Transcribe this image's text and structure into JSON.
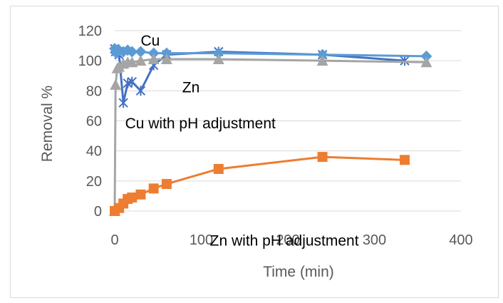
{
  "chart_data": {
    "type": "line",
    "title": "",
    "xlabel": "Time (min)",
    "ylabel": "Removal %",
    "xlim": [
      0,
      400
    ],
    "ylim": [
      0,
      120
    ],
    "x_ticks": [
      "0",
      "100",
      "200",
      "300",
      "400"
    ],
    "y_ticks": [
      "0",
      "20",
      "40",
      "60",
      "80",
      "100",
      "120"
    ],
    "grid": "horizontal",
    "legend": "none",
    "series": [
      {
        "color": "#4472c4",
        "marker": "star",
        "points": [
          [
            0,
            108
          ],
          [
            1,
            106
          ],
          [
            5,
            104
          ],
          [
            10,
            72
          ],
          [
            15,
            85
          ],
          [
            20,
            86
          ],
          [
            30,
            80
          ],
          [
            45,
            97
          ],
          [
            60,
            104
          ],
          [
            120,
            106
          ],
          [
            240,
            104
          ],
          [
            335,
            100
          ]
        ]
      },
      {
        "color": "#5b9bd5",
        "marker": "diamond",
        "points": [
          [
            0,
            108
          ],
          [
            2,
            105
          ],
          [
            5,
            107
          ],
          [
            10,
            106
          ],
          [
            15,
            107
          ],
          [
            20,
            106
          ],
          [
            30,
            106
          ],
          [
            45,
            105
          ],
          [
            60,
            105
          ],
          [
            120,
            105
          ],
          [
            240,
            104
          ],
          [
            360,
            103
          ]
        ]
      },
      {
        "color": "#a5a5a5",
        "marker": "triangle",
        "points": [
          [
            0,
            0
          ],
          [
            1,
            84
          ],
          [
            3,
            95
          ],
          [
            5,
            96
          ],
          [
            10,
            98
          ],
          [
            15,
            99
          ],
          [
            20,
            99
          ],
          [
            30,
            100
          ],
          [
            45,
            101
          ],
          [
            60,
            101
          ],
          [
            120,
            101
          ],
          [
            240,
            100
          ],
          [
            360,
            99
          ]
        ]
      },
      {
        "color": "#ed7d31",
        "marker": "square",
        "points": [
          [
            0,
            0
          ],
          [
            5,
            2
          ],
          [
            10,
            5
          ],
          [
            15,
            8
          ],
          [
            20,
            9
          ],
          [
            30,
            11
          ],
          [
            45,
            15
          ],
          [
            60,
            18
          ],
          [
            120,
            28
          ],
          [
            240,
            36
          ],
          [
            335,
            34
          ]
        ]
      }
    ],
    "annotations": [
      {
        "text": "Cu",
        "x": 30,
        "y": 110
      },
      {
        "text": "Zn",
        "x": 78,
        "y": 79
      },
      {
        "text": "Cu with pH adjustment",
        "x": 12,
        "y": 55
      },
      {
        "text": "Zn with pH adjustment",
        "x": 110,
        "y": -23
      }
    ]
  }
}
